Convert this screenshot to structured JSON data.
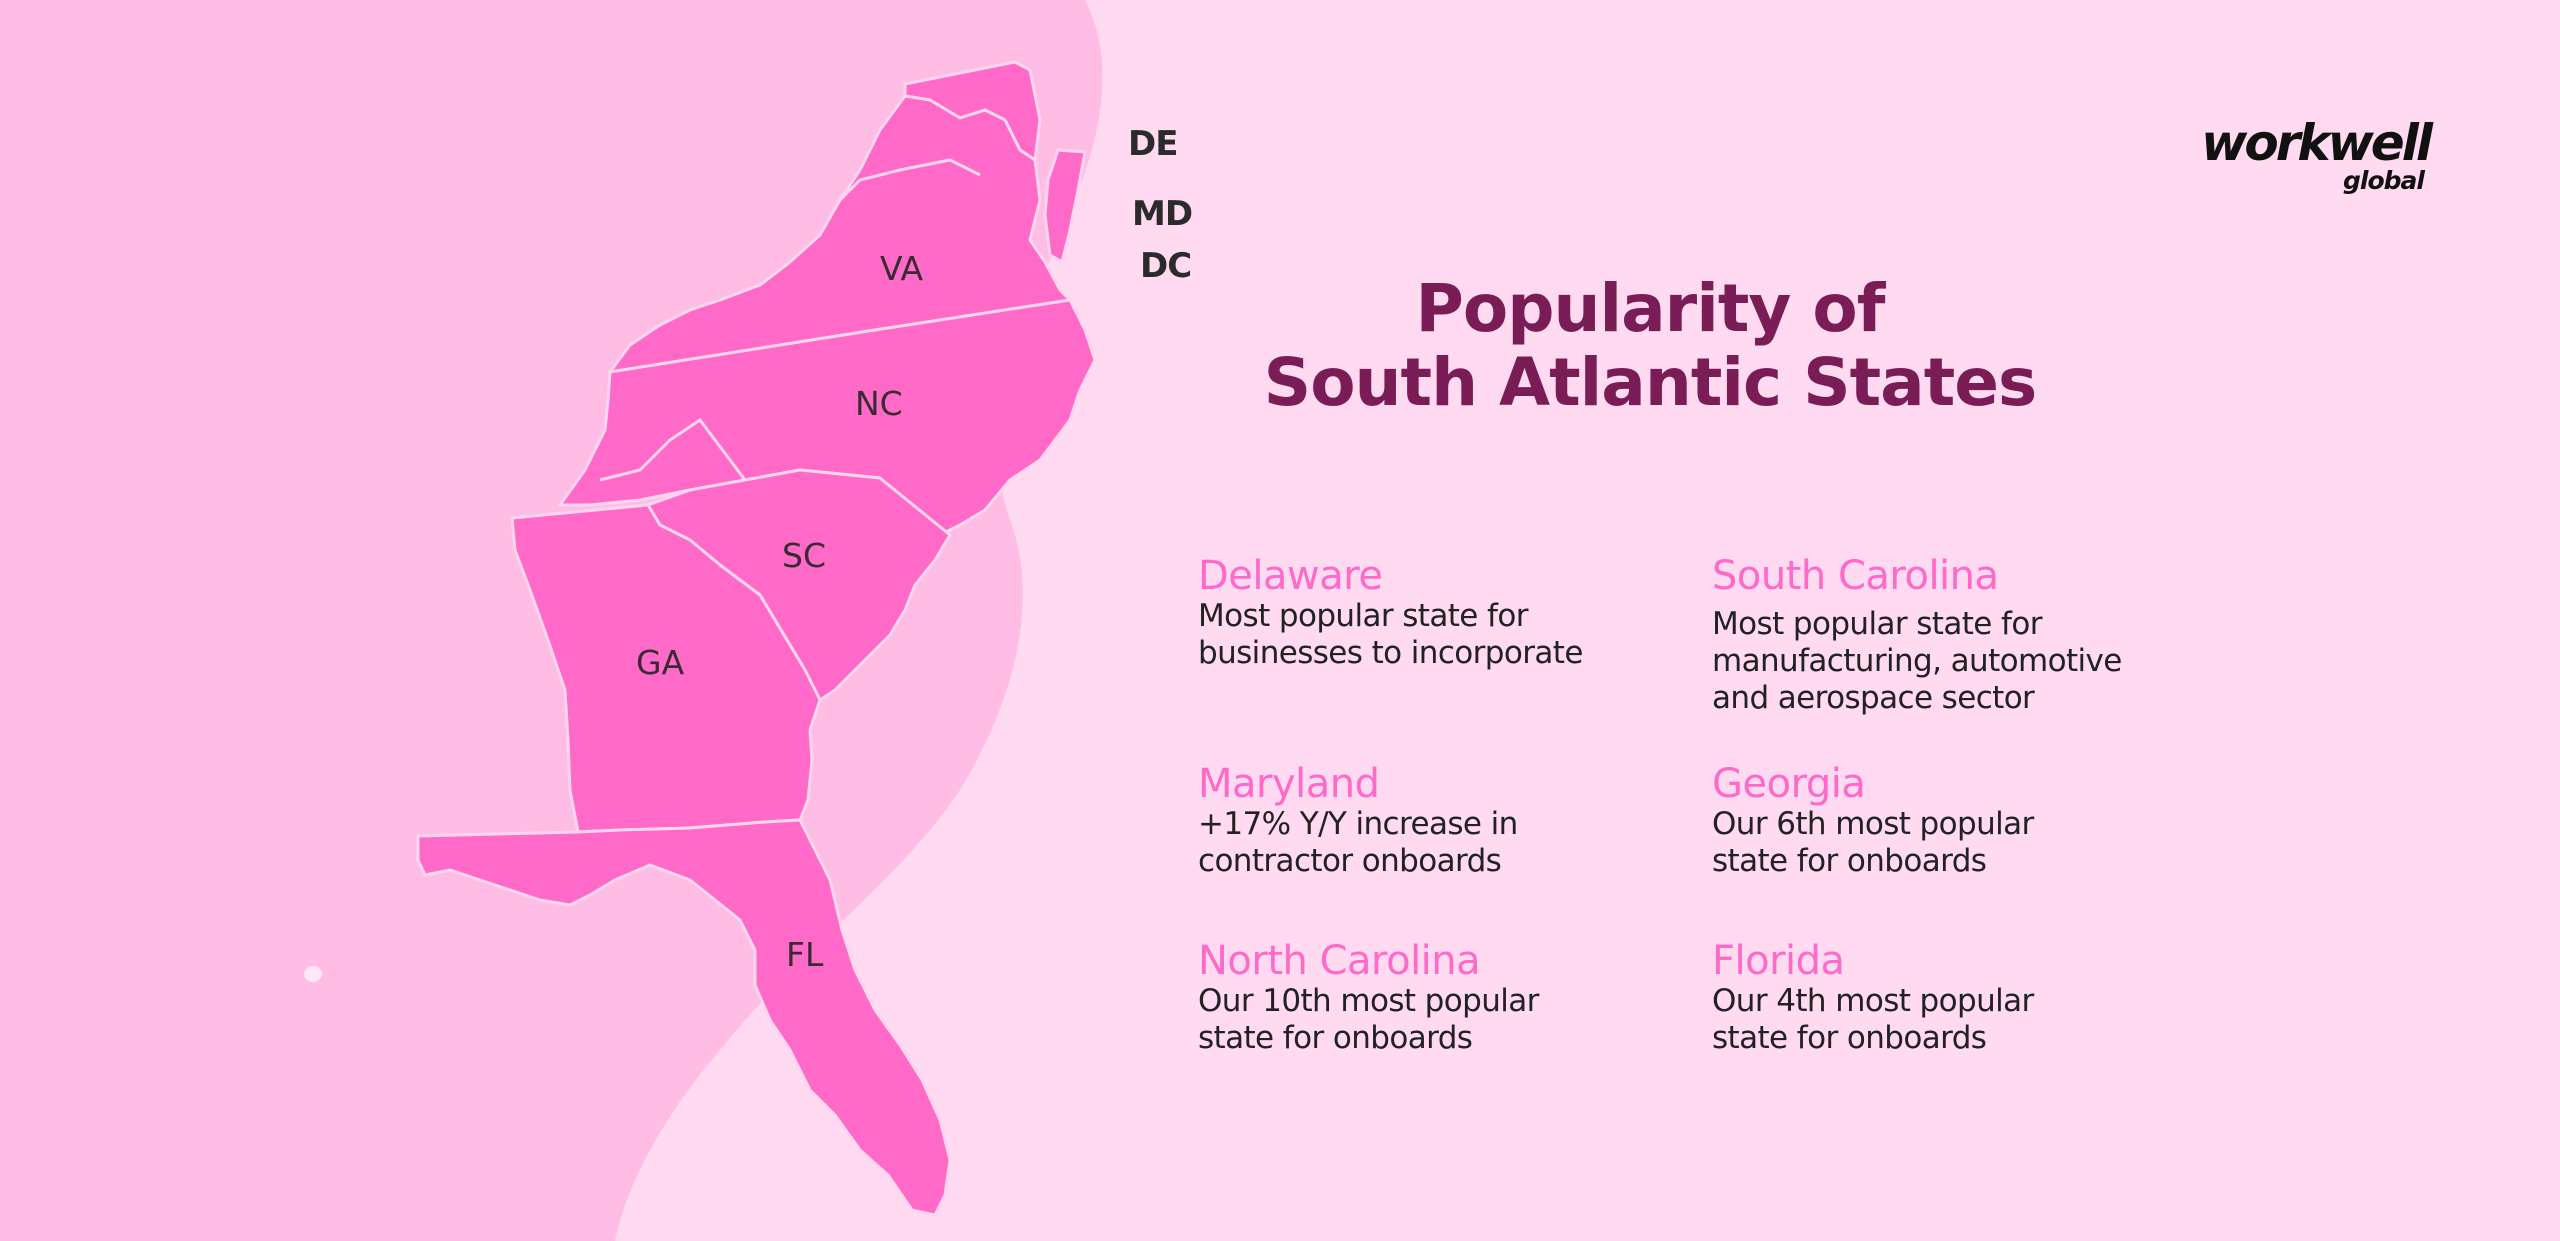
{
  "brand": {
    "logo_main": "workwell",
    "logo_sub": "global",
    "colors": {
      "background": "#ffdaf1",
      "wave": "#ffbde6",
      "state_fill": "#ff69c8",
      "state_border": "#ffd6ee",
      "title": "#7a1d57",
      "heading": "#ff69c8",
      "body": "#222222"
    }
  },
  "title": {
    "line1": "Popularity of",
    "line2": "South Atlantic States"
  },
  "map": {
    "state_labels": {
      "va": "VA",
      "nc": "NC",
      "sc": "SC",
      "ga": "GA",
      "fl": "FL"
    },
    "outside_labels": {
      "de": "DE",
      "md": "MD",
      "dc": "DC"
    }
  },
  "facts": [
    {
      "state": "Delaware",
      "text": "Most popular state for\nbusinesses to incorporate"
    },
    {
      "state": "South Carolina",
      "text": "Most popular state for\nmanufacturing, automotive\nand aerospace sector"
    },
    {
      "state": "Maryland",
      "text": "+17% Y/Y increase in\ncontractor onboards"
    },
    {
      "state": "Georgia",
      "text": "Our 6th most popular\nstate for onboards"
    },
    {
      "state": "North Carolina",
      "text": "Our 10th most popular\nstate for onboards"
    },
    {
      "state": "Florida",
      "text": "Our 4th most popular\nstate for onboards"
    }
  ]
}
